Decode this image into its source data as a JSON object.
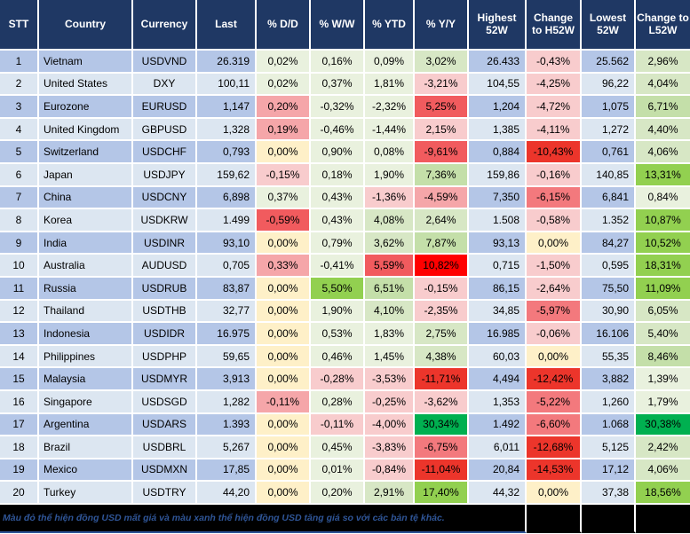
{
  "palette": {
    "header_bg": "#1F3864",
    "grid_line": "#FFFFFF",
    "row_odd": "#B4C6E7",
    "row_even": "#DCE6F1",
    "blue_text": "#1F2B4D",
    "pct_text": "#000000",
    "footer_bg": "#000000",
    "footer_text": "#2F5597",
    "tones": {
      "G1": "#E9F1DE",
      "G2": "#D7E7C5",
      "G3": "#C4DFA9",
      "G4": "#92D050",
      "G5": "#00B050",
      "Y": "#FEF0C8",
      "P1": "#F8CCCD",
      "P2": "#F5A6A9",
      "S": "#F3797D",
      "RM": "#F15B5E",
      "R1": "#EC352B",
      "R2": "#FF0000"
    }
  },
  "chart_data": {
    "type": "table",
    "title": "USD exchange rates vs major currencies (52-week heatmap table)",
    "columns": [
      "STT",
      "Country",
      "Currency",
      "Last",
      "% D/D",
      "% W/W",
      "% YTD",
      "% Y/Y",
      "Highest 52W",
      "Change to H52W",
      "Lowest 52W",
      "Change to L52W"
    ],
    "rows": [
      {
        "stt": "1",
        "country": "Vietnam",
        "currency": "USDVND",
        "last": "26.319",
        "dd": {
          "v": "0,02%",
          "t": "G1"
        },
        "ww": {
          "v": "0,16%",
          "t": "G1"
        },
        "ytd": {
          "v": "0,09%",
          "t": "G1"
        },
        "yy": {
          "v": "3,02%",
          "t": "G2"
        },
        "high": "26.433",
        "chg_h": {
          "v": "-0,43%",
          "t": "P1"
        },
        "low": "25.562",
        "chg_l": {
          "v": "2,96%",
          "t": "G2"
        }
      },
      {
        "stt": "2",
        "country": "United States",
        "currency": "DXY",
        "last": "100,11",
        "dd": {
          "v": "0,02%",
          "t": "G1"
        },
        "ww": {
          "v": "0,37%",
          "t": "G1"
        },
        "ytd": {
          "v": "1,81%",
          "t": "G1"
        },
        "yy": {
          "v": "-3,21%",
          "t": "P1"
        },
        "high": "104,55",
        "chg_h": {
          "v": "-4,25%",
          "t": "P1"
        },
        "low": "96,22",
        "chg_l": {
          "v": "4,04%",
          "t": "G2"
        }
      },
      {
        "stt": "3",
        "country": "Eurozone",
        "currency": "EURUSD",
        "last": "1,147",
        "dd": {
          "v": "0,20%",
          "t": "P2"
        },
        "ww": {
          "v": "-0,32%",
          "t": "G1"
        },
        "ytd": {
          "v": "-2,32%",
          "t": "G1"
        },
        "yy": {
          "v": "5,25%",
          "t": "RM"
        },
        "high": "1,204",
        "chg_h": {
          "v": "-4,72%",
          "t": "P1"
        },
        "low": "1,075",
        "chg_l": {
          "v": "6,71%",
          "t": "G3"
        }
      },
      {
        "stt": "4",
        "country": "United Kingdom",
        "currency": "GBPUSD",
        "last": "1,328",
        "dd": {
          "v": "0,19%",
          "t": "P2"
        },
        "ww": {
          "v": "-0,46%",
          "t": "G1"
        },
        "ytd": {
          "v": "-1,44%",
          "t": "G1"
        },
        "yy": {
          "v": "2,15%",
          "t": "P1"
        },
        "high": "1,385",
        "chg_h": {
          "v": "-4,11%",
          "t": "P1"
        },
        "low": "1,272",
        "chg_l": {
          "v": "4,40%",
          "t": "G2"
        }
      },
      {
        "stt": "5",
        "country": "Switzerland",
        "currency": "USDCHF",
        "last": "0,793",
        "dd": {
          "v": "0,00%",
          "t": "Y"
        },
        "ww": {
          "v": "0,90%",
          "t": "G1"
        },
        "ytd": {
          "v": "0,08%",
          "t": "G1"
        },
        "yy": {
          "v": "-9,61%",
          "t": "RM"
        },
        "high": "0,884",
        "chg_h": {
          "v": "-10,43%",
          "t": "R1"
        },
        "low": "0,761",
        "chg_l": {
          "v": "4,06%",
          "t": "G2"
        }
      },
      {
        "stt": "6",
        "country": "Japan",
        "currency": "USDJPY",
        "last": "159,62",
        "dd": {
          "v": "-0,15%",
          "t": "P1"
        },
        "ww": {
          "v": "0,18%",
          "t": "G1"
        },
        "ytd": {
          "v": "1,90%",
          "t": "G1"
        },
        "yy": {
          "v": "7,36%",
          "t": "G3"
        },
        "high": "159,86",
        "chg_h": {
          "v": "-0,16%",
          "t": "P1"
        },
        "low": "140,85",
        "chg_l": {
          "v": "13,31%",
          "t": "G4"
        }
      },
      {
        "stt": "7",
        "country": "China",
        "currency": "USDCNY",
        "last": "6,898",
        "dd": {
          "v": "0,37%",
          "t": "G1"
        },
        "ww": {
          "v": "0,43%",
          "t": "G1"
        },
        "ytd": {
          "v": "-1,36%",
          "t": "P1"
        },
        "yy": {
          "v": "-4,59%",
          "t": "P2"
        },
        "high": "7,350",
        "chg_h": {
          "v": "-6,15%",
          "t": "S"
        },
        "low": "6,841",
        "chg_l": {
          "v": "0,84%",
          "t": "G1"
        }
      },
      {
        "stt": "8",
        "country": "Korea",
        "currency": "USDKRW",
        "last": "1.499",
        "dd": {
          "v": "-0,59%",
          "t": "RM"
        },
        "ww": {
          "v": "0,43%",
          "t": "G1"
        },
        "ytd": {
          "v": "4,08%",
          "t": "G2"
        },
        "yy": {
          "v": "2,64%",
          "t": "G2"
        },
        "high": "1.508",
        "chg_h": {
          "v": "-0,58%",
          "t": "P1"
        },
        "low": "1.352",
        "chg_l": {
          "v": "10,87%",
          "t": "G4"
        }
      },
      {
        "stt": "9",
        "country": "India",
        "currency": "USDINR",
        "last": "93,10",
        "dd": {
          "v": "0,00%",
          "t": "Y"
        },
        "ww": {
          "v": "0,79%",
          "t": "G1"
        },
        "ytd": {
          "v": "3,62%",
          "t": "G2"
        },
        "yy": {
          "v": "7,87%",
          "t": "G3"
        },
        "high": "93,13",
        "chg_h": {
          "v": "0,00%",
          "t": "Y"
        },
        "low": "84,27",
        "chg_l": {
          "v": "10,52%",
          "t": "G4"
        }
      },
      {
        "stt": "10",
        "country": "Australia",
        "currency": "AUDUSD",
        "last": "0,705",
        "dd": {
          "v": "0,33%",
          "t": "P2"
        },
        "ww": {
          "v": "-0,41%",
          "t": "G1"
        },
        "ytd": {
          "v": "5,59%",
          "t": "RM"
        },
        "yy": {
          "v": "10,82%",
          "t": "R2"
        },
        "high": "0,715",
        "chg_h": {
          "v": "-1,50%",
          "t": "P1"
        },
        "low": "0,595",
        "chg_l": {
          "v": "18,31%",
          "t": "G4"
        }
      },
      {
        "stt": "11",
        "country": "Russia",
        "currency": "USDRUB",
        "last": "83,87",
        "dd": {
          "v": "0,00%",
          "t": "Y"
        },
        "ww": {
          "v": "5,50%",
          "t": "G4"
        },
        "ytd": {
          "v": "6,51%",
          "t": "G3"
        },
        "yy": {
          "v": "-0,15%",
          "t": "P1"
        },
        "high": "86,15",
        "chg_h": {
          "v": "-2,64%",
          "t": "P1"
        },
        "low": "75,50",
        "chg_l": {
          "v": "11,09%",
          "t": "G4"
        }
      },
      {
        "stt": "12",
        "country": "Thailand",
        "currency": "USDTHB",
        "last": "32,77",
        "dd": {
          "v": "0,00%",
          "t": "Y"
        },
        "ww": {
          "v": "1,90%",
          "t": "G1"
        },
        "ytd": {
          "v": "4,10%",
          "t": "G2"
        },
        "yy": {
          "v": "-2,35%",
          "t": "P1"
        },
        "high": "34,85",
        "chg_h": {
          "v": "-5,97%",
          "t": "S"
        },
        "low": "30,90",
        "chg_l": {
          "v": "6,05%",
          "t": "G2"
        }
      },
      {
        "stt": "13",
        "country": "Indonesia",
        "currency": "USDIDR",
        "last": "16.975",
        "dd": {
          "v": "0,00%",
          "t": "Y"
        },
        "ww": {
          "v": "0,53%",
          "t": "G1"
        },
        "ytd": {
          "v": "1,83%",
          "t": "G1"
        },
        "yy": {
          "v": "2,75%",
          "t": "G2"
        },
        "high": "16.985",
        "chg_h": {
          "v": "-0,06%",
          "t": "P1"
        },
        "low": "16.106",
        "chg_l": {
          "v": "5,40%",
          "t": "G2"
        }
      },
      {
        "stt": "14",
        "country": "Philippines",
        "currency": "USDPHP",
        "last": "59,65",
        "dd": {
          "v": "0,00%",
          "t": "Y"
        },
        "ww": {
          "v": "0,46%",
          "t": "G1"
        },
        "ytd": {
          "v": "1,45%",
          "t": "G1"
        },
        "yy": {
          "v": "4,38%",
          "t": "G2"
        },
        "high": "60,03",
        "chg_h": {
          "v": "0,00%",
          "t": "Y"
        },
        "low": "55,35",
        "chg_l": {
          "v": "8,46%",
          "t": "G3"
        }
      },
      {
        "stt": "15",
        "country": "Malaysia",
        "currency": "USDMYR",
        "last": "3,913",
        "dd": {
          "v": "0,00%",
          "t": "Y"
        },
        "ww": {
          "v": "-0,28%",
          "t": "P1"
        },
        "ytd": {
          "v": "-3,53%",
          "t": "P1"
        },
        "yy": {
          "v": "-11,71%",
          "t": "R1"
        },
        "high": "4,494",
        "chg_h": {
          "v": "-12,42%",
          "t": "R1"
        },
        "low": "3,882",
        "chg_l": {
          "v": "1,39%",
          "t": "G1"
        }
      },
      {
        "stt": "16",
        "country": "Singapore",
        "currency": "USDSGD",
        "last": "1,282",
        "dd": {
          "v": "-0,11%",
          "t": "P2"
        },
        "ww": {
          "v": "0,28%",
          "t": "G1"
        },
        "ytd": {
          "v": "-0,25%",
          "t": "P1"
        },
        "yy": {
          "v": "-3,62%",
          "t": "P1"
        },
        "high": "1,353",
        "chg_h": {
          "v": "-5,22%",
          "t": "S"
        },
        "low": "1,260",
        "chg_l": {
          "v": "1,79%",
          "t": "G1"
        }
      },
      {
        "stt": "17",
        "country": "Argentina",
        "currency": "USDARS",
        "last": "1.393",
        "dd": {
          "v": "0,00%",
          "t": "Y"
        },
        "ww": {
          "v": "-0,11%",
          "t": "P1"
        },
        "ytd": {
          "v": "-4,00%",
          "t": "P1"
        },
        "yy": {
          "v": "30,34%",
          "t": "G5"
        },
        "high": "1.492",
        "chg_h": {
          "v": "-6,60%",
          "t": "S"
        },
        "low": "1.068",
        "chg_l": {
          "v": "30,38%",
          "t": "G5"
        }
      },
      {
        "stt": "18",
        "country": "Brazil",
        "currency": "USDBRL",
        "last": "5,267",
        "dd": {
          "v": "0,00%",
          "t": "Y"
        },
        "ww": {
          "v": "0,45%",
          "t": "G1"
        },
        "ytd": {
          "v": "-3,83%",
          "t": "P1"
        },
        "yy": {
          "v": "-6,75%",
          "t": "S"
        },
        "high": "6,011",
        "chg_h": {
          "v": "-12,68%",
          "t": "R1"
        },
        "low": "5,125",
        "chg_l": {
          "v": "2,42%",
          "t": "G2"
        }
      },
      {
        "stt": "19",
        "country": "Mexico",
        "currency": "USDMXN",
        "last": "17,85",
        "dd": {
          "v": "0,00%",
          "t": "Y"
        },
        "ww": {
          "v": "0,01%",
          "t": "G1"
        },
        "ytd": {
          "v": "-0,84%",
          "t": "P1"
        },
        "yy": {
          "v": "-11,04%",
          "t": "R1"
        },
        "high": "20,84",
        "chg_h": {
          "v": "-14,53%",
          "t": "R1"
        },
        "low": "17,12",
        "chg_l": {
          "v": "4,06%",
          "t": "G2"
        }
      },
      {
        "stt": "20",
        "country": "Turkey",
        "currency": "USDTRY",
        "last": "44,20",
        "dd": {
          "v": "0,00%",
          "t": "Y"
        },
        "ww": {
          "v": "0,20%",
          "t": "G1"
        },
        "ytd": {
          "v": "2,91%",
          "t": "G2"
        },
        "yy": {
          "v": "17,40%",
          "t": "G4"
        },
        "high": "44,32",
        "chg_h": {
          "v": "0,00%",
          "t": "Y"
        },
        "low": "37,38",
        "chg_l": {
          "v": "18,56%",
          "t": "G4"
        }
      }
    ]
  },
  "footer": {
    "note": "Màu đỏ thể hiện đồng USD mất giá và màu xanh thể hiện đồng USD tăng giá so với các bản tệ khác."
  }
}
